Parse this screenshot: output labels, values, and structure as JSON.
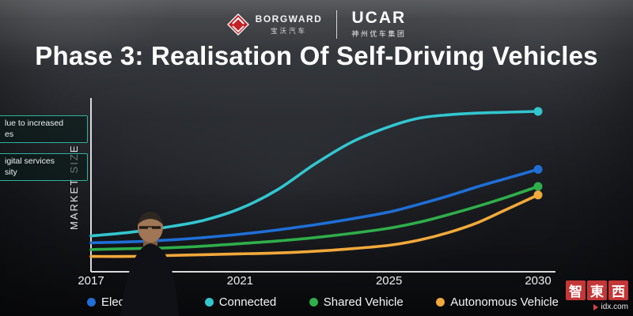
{
  "header": {
    "borgward": {
      "name": "BORGWARD",
      "cn": "宝沃汽车"
    },
    "ucar": {
      "name": "UCAR",
      "cn": "神州优车集团"
    }
  },
  "title": "Phase 3: Realisation Of Self-Driving Vehicles",
  "side_notes": [
    {
      "line1": "lue to increased",
      "line2": "es"
    },
    {
      "line1": "igital services",
      "line2": "sity"
    }
  ],
  "chart_data": {
    "type": "line",
    "title": "Phase 3: Realisation Of Self-Driving Vehicles",
    "ylabel": "MARKET SIZE",
    "xlabel": "",
    "ylim": [
      0,
      100
    ],
    "grid": false,
    "legend_position": "bottom",
    "x": [
      2017,
      2018,
      2019,
      2020,
      2021,
      2022,
      2023,
      2024,
      2025,
      2026,
      2027,
      2028,
      2029,
      2030
    ],
    "x_ticks": [
      2017,
      2021,
      2025,
      2030
    ],
    "x_tick_labels": [
      "2017",
      "2021",
      "2025",
      "2030"
    ],
    "series": [
      {
        "name": "Electrification",
        "color": "#1f6fd6",
        "values": [
          17,
          17.5,
          18.5,
          20,
          22,
          24.5,
          27.5,
          31,
          35,
          39.5,
          44.5,
          50,
          55,
          60
        ]
      },
      {
        "name": "Connected",
        "color": "#33c6cf",
        "values": [
          21,
          23,
          26,
          30,
          37,
          48,
          63,
          76,
          85,
          90,
          92,
          93,
          93.5,
          94
        ]
      },
      {
        "name": "Shared Vehicle",
        "color": "#2fae4a",
        "values": [
          13,
          13.5,
          14,
          15,
          16.5,
          18,
          20,
          22.5,
          25.5,
          29,
          33.5,
          38.5,
          44,
          50
        ]
      },
      {
        "name": "Autonomous Vehicle",
        "color": "#f2a93b",
        "values": [
          9,
          9,
          9.5,
          10,
          10.5,
          11,
          12,
          13.5,
          15.5,
          18.5,
          23,
          29,
          37,
          45
        ]
      }
    ]
  },
  "watermark": {
    "chars": [
      "智",
      "東",
      "西"
    ],
    "sub": "idx.com"
  }
}
